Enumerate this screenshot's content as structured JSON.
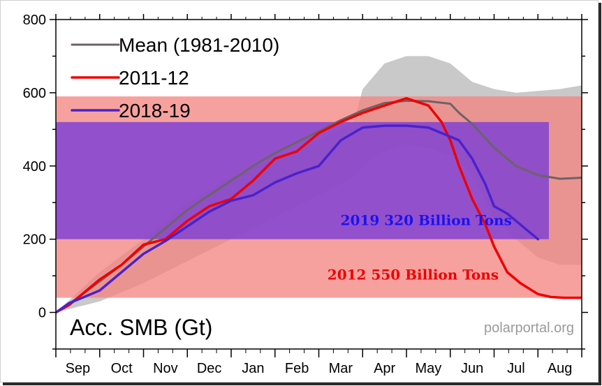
{
  "chart_data": {
    "type": "line",
    "y_axis_label": "Acc. SMB (Gt)",
    "source": "polarportal.org",
    "ylim": [
      -100,
      800
    ],
    "yticks": [
      "0",
      "200",
      "400",
      "600",
      "800"
    ],
    "ytick_values": [
      0,
      200,
      400,
      600,
      800
    ],
    "month_labels": [
      "Sep",
      "Oct",
      "Nov",
      "Dec",
      "Jan",
      "Feb",
      "Mar",
      "Apr",
      "May",
      "Jun",
      "Jul",
      "Aug"
    ],
    "grid": false,
    "legend_position": "top-left",
    "colors": {
      "mean": "#6b6465",
      "s2012": "#ee0000",
      "s2019": "#4a22cc",
      "envelope": "#c9c9c9",
      "band2012": "#f4817f",
      "band2019": "#7d3ed6",
      "anno2019": "#1b13ee",
      "anno2012": "#ee0000"
    },
    "series": [
      {
        "name": "Mean (1981-2010)",
        "key": "mean",
        "x": [
          0,
          0.5,
          1,
          1.5,
          2,
          2.5,
          3,
          3.5,
          4,
          4.5,
          5,
          5.5,
          6,
          6.5,
          7,
          7.5,
          8,
          8.5,
          9,
          9.2,
          9.5,
          10,
          10.5,
          11,
          11.5,
          12
        ],
        "y": [
          0,
          40,
          85,
          130,
          180,
          230,
          280,
          320,
          360,
          400,
          435,
          465,
          495,
          525,
          552,
          572,
          578,
          577,
          570,
          545,
          515,
          450,
          400,
          375,
          365,
          368
        ]
      },
      {
        "name": "2011-12",
        "key": "s2012",
        "x": [
          0,
          0.3,
          0.6,
          1,
          1.5,
          2,
          2.5,
          3,
          3.5,
          4,
          4.5,
          5,
          5.5,
          6,
          6.5,
          7,
          7.5,
          8,
          8.5,
          8.8,
          9,
          9.2,
          9.5,
          9.8,
          10,
          10.3,
          10.6,
          11,
          11.3,
          11.6,
          12
        ],
        "y": [
          0,
          20,
          50,
          90,
          130,
          185,
          200,
          250,
          290,
          310,
          360,
          420,
          440,
          490,
          520,
          545,
          565,
          585,
          565,
          520,
          470,
          400,
          310,
          240,
          180,
          110,
          80,
          50,
          42,
          40,
          40
        ]
      },
      {
        "name": "2018-19",
        "key": "s2019",
        "x": [
          0,
          0.3,
          0.6,
          1,
          1.5,
          2,
          2.5,
          3,
          3.5,
          4,
          4.5,
          5,
          5.5,
          6,
          6.5,
          7,
          7.5,
          8,
          8.5,
          8.8,
          9,
          9.2,
          9.5,
          9.8,
          10,
          10.3,
          10.6,
          11
        ],
        "y": [
          0,
          25,
          40,
          60,
          110,
          160,
          195,
          235,
          275,
          305,
          320,
          355,
          380,
          400,
          470,
          505,
          510,
          510,
          505,
          490,
          480,
          470,
          420,
          350,
          290,
          270,
          240,
          200
        ]
      }
    ],
    "envelope": {
      "name": "range",
      "x": [
        0,
        1,
        2,
        3,
        4,
        5,
        6,
        6.8,
        7,
        7.5,
        8,
        8.5,
        9,
        9.5,
        10,
        10.5,
        11,
        11.5,
        12
      ],
      "upper": [
        0,
        110,
        200,
        300,
        370,
        420,
        470,
        520,
        610,
        680,
        700,
        700,
        680,
        630,
        610,
        600,
        605,
        610,
        620
      ],
      "lower": [
        0,
        30,
        80,
        140,
        200,
        260,
        320,
        370,
        400,
        440,
        460,
        450,
        430,
        380,
        260,
        200,
        150,
        130,
        130
      ]
    },
    "bands": [
      {
        "key": "band2012",
        "y_from": 40,
        "y_to": 590,
        "x_to": 12.0
      },
      {
        "key": "band2019",
        "y_from": 200,
        "y_to": 520,
        "x_to": 11.25
      }
    ],
    "annotations": [
      {
        "key": "anno2019",
        "text": "2019 320 Billion Tons",
        "x": 8.45,
        "y": 238
      },
      {
        "key": "anno2012",
        "text": "2012 550 Billion Tons",
        "x": 8.15,
        "y": 90
      }
    ]
  }
}
